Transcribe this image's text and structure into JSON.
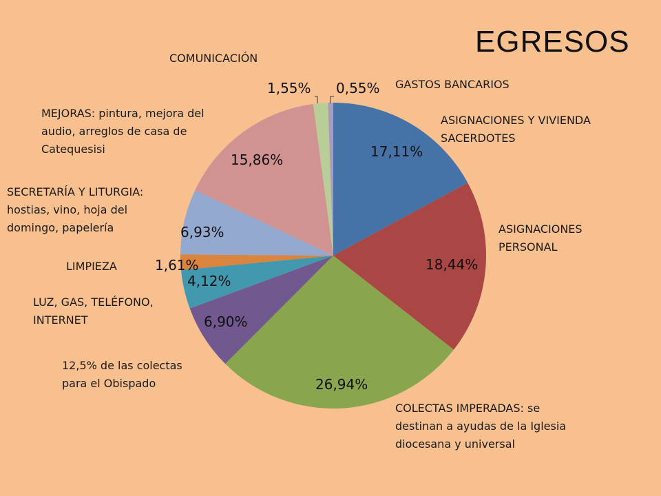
{
  "chart_data": {
    "type": "pie",
    "title": "EGRESOS",
    "categories": [
      "ASIGNACIONES Y VIVIENDA SACERDOTES",
      "ASIGNACIONES PERSONAL",
      "COLECTAS IMPERADAS: se destinan a ayudas de la Iglesia diocesana y universal",
      "12,5% de las colectas para el Obispado",
      "LUZ, GAS, TELÉFONO, INTERNET",
      "LIMPIEZA",
      "SECRETARÍA Y LITURGIA: hostias, vino, hoja del domingo, papelería",
      "MEJORAS: pintura, mejora del audio, arreglos de casa de Catequesisi",
      "COMUNICACIÓN",
      "GASTOS BANCARIOS"
    ],
    "values": [
      17.11,
      18.44,
      26.94,
      6.9,
      4.12,
      1.61,
      6.93,
      15.86,
      1.55,
      0.55
    ],
    "value_labels": [
      "17,11%",
      "18,44%",
      "26,94%",
      "6,90%",
      "4,12%",
      "1,61%",
      "6,93%",
      "15,86%",
      "1,55%",
      "0,55%"
    ],
    "colors": [
      "#4572A7",
      "#AA4643",
      "#89A54E",
      "#71588F",
      "#4198AF",
      "#DB843D",
      "#93A9CF",
      "#D19392",
      "#B9CD96",
      "#A99BBD"
    ],
    "category_lines": [
      [
        "ASIGNACIONES Y VIVIENDA",
        "SACERDOTES"
      ],
      [
        "ASIGNACIONES",
        "PERSONAL"
      ],
      [
        "COLECTAS IMPERADAS: se",
        "destinan a ayudas de la Iglesia",
        "diocesana y universal"
      ],
      [
        "12,5% de las colectas",
        "para el Obispado"
      ],
      [
        "LUZ, GAS, TELÉFONO,",
        "INTERNET"
      ],
      [
        "LIMPIEZA"
      ],
      [
        "SECRETARÍA Y LITURGIA:",
        "hostias, vino, hoja del",
        "domingo, papelería"
      ],
      [
        "MEJORAS: pintura, mejora del",
        "audio, arreglos de casa de",
        "Catequesisi"
      ],
      [
        "COMUNICACIÓN"
      ],
      [
        "GASTOS BANCARIOS"
      ]
    ]
  }
}
